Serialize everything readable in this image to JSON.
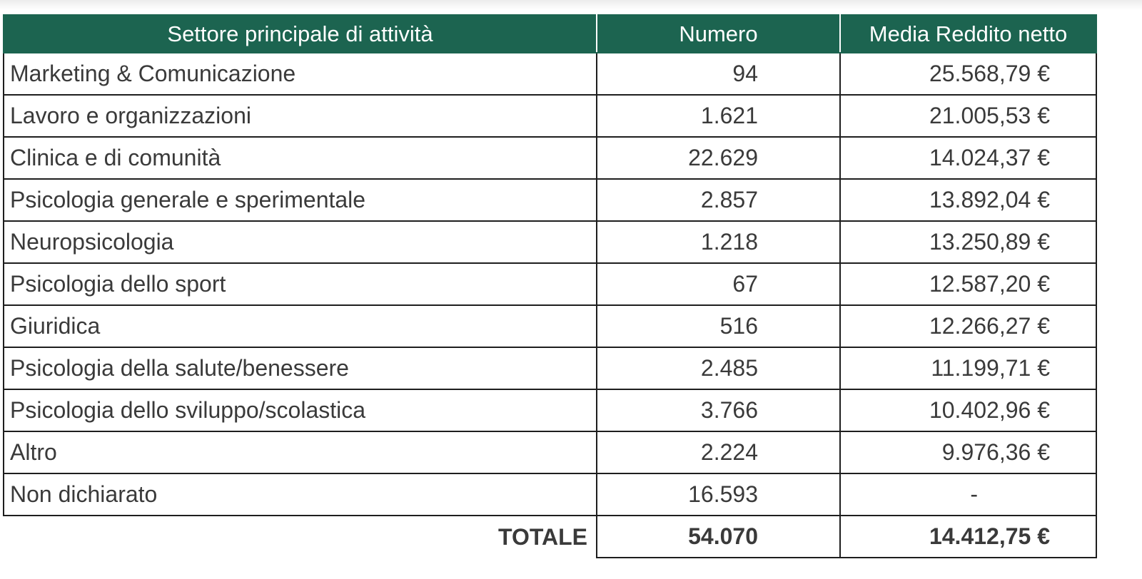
{
  "table": {
    "headers": {
      "sector": "Settore principale di attività",
      "count": "Numero",
      "avg_income": "Media Reddito netto"
    },
    "rows": [
      {
        "sector": "Marketing & Comunicazione",
        "count": "94",
        "avg_income": "25.568,79 €"
      },
      {
        "sector": "Lavoro e organizzazioni",
        "count": "1.621",
        "avg_income": "21.005,53 €"
      },
      {
        "sector": "Clinica e di comunità",
        "count": "22.629",
        "avg_income": "14.024,37 €"
      },
      {
        "sector": "Psicologia generale e sperimentale",
        "count": "2.857",
        "avg_income": "13.892,04 €"
      },
      {
        "sector": "Neuropsicologia",
        "count": "1.218",
        "avg_income": "13.250,89 €"
      },
      {
        "sector": "Psicologia dello sport",
        "count": "67",
        "avg_income": "12.587,20 €"
      },
      {
        "sector": "Giuridica",
        "count": "516",
        "avg_income": "12.266,27 €"
      },
      {
        "sector": "Psicologia della salute/benessere",
        "count": "2.485",
        "avg_income": "11.199,71 €"
      },
      {
        "sector": "Psicologia dello sviluppo/scolastica",
        "count": "3.766",
        "avg_income": "10.402,96 €"
      },
      {
        "sector": "Altro",
        "count": "2.224",
        "avg_income": "9.976,36 €"
      },
      {
        "sector": "Non dichiarato",
        "count": "16.593",
        "avg_income": "-"
      }
    ],
    "total": {
      "label": "TOTALE",
      "count": "54.070",
      "avg_income": "14.412,75 €"
    }
  },
  "colors": {
    "header_bg": "#1c6450",
    "header_text": "#ffffff",
    "body_text": "#3a3a3a",
    "border": "#1e1e1e"
  }
}
